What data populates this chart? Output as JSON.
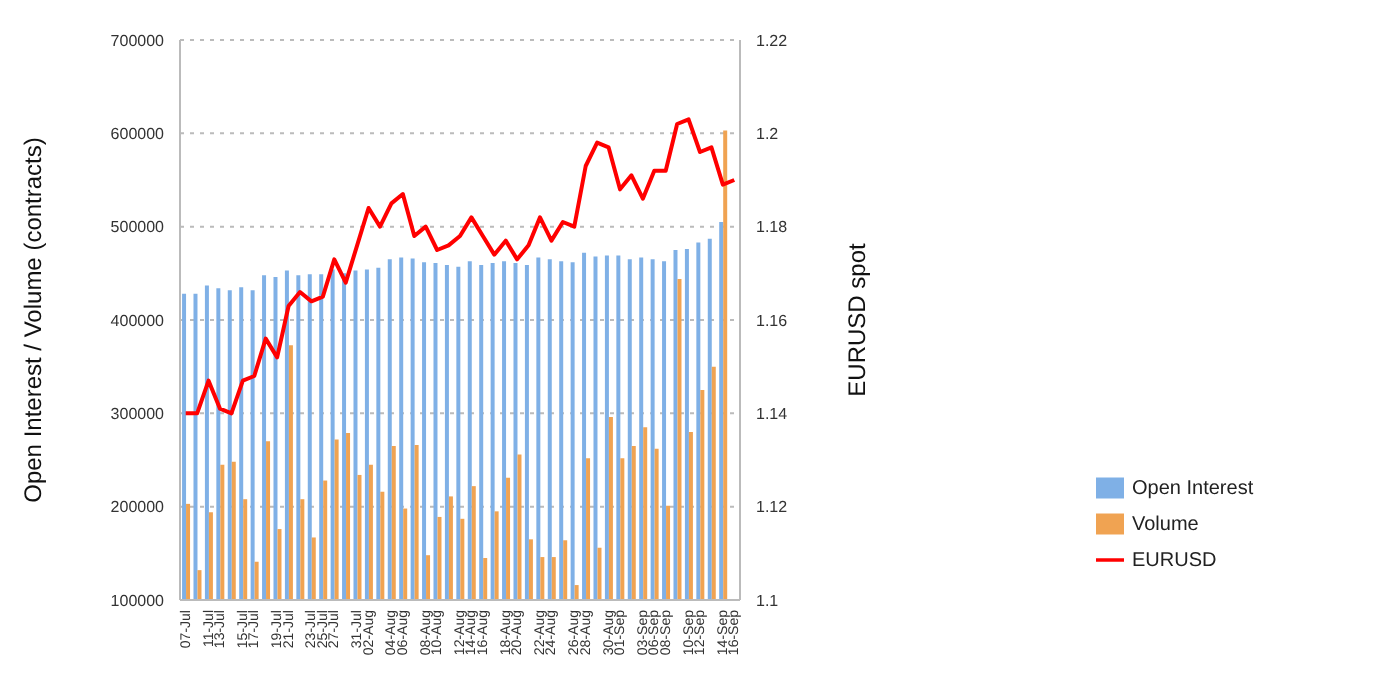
{
  "chart_data": {
    "type": "bar",
    "categories": [
      "07-Jul",
      null,
      "11-Jul",
      "13-Jul",
      null,
      "15-Jul",
      "17-Jul",
      null,
      "19-Jul",
      "21-Jul",
      null,
      "23-Jul",
      "25-Jul",
      "27-Jul",
      null,
      "31-Jul",
      "02-Aug",
      null,
      "04-Aug",
      "06-Aug",
      null,
      "08-Aug",
      "10-Aug",
      null,
      "12-Aug",
      "14-Aug",
      "16-Aug",
      null,
      "18-Aug",
      "20-Aug",
      null,
      "22-Aug",
      "24-Aug",
      null,
      "26-Aug",
      "28-Aug",
      null,
      "30-Aug",
      "01-Sep",
      null,
      "03-Sep",
      "06-Sep",
      "08-Sep",
      null,
      "10-Sep",
      "12-Sep",
      null,
      "14-Sep",
      "16-Sep"
    ],
    "series": [
      {
        "name": "Open Interest",
        "color": "#7fb0e6",
        "values": [
          428000,
          428000,
          437000,
          434000,
          432000,
          435000,
          432000,
          448000,
          446000,
          453000,
          448000,
          449000,
          449000,
          454000,
          450000,
          453000,
          454000,
          456000,
          465000,
          467000,
          466000,
          462000,
          461000,
          459000,
          457000,
          463000,
          459000,
          461000,
          463000,
          461000,
          459000,
          467000,
          465000,
          463000,
          462000,
          472000,
          468000,
          469000,
          469000,
          465000,
          467000,
          465000,
          463000,
          475000,
          476000,
          483000,
          487000,
          505000,
          null
        ]
      },
      {
        "name": "Volume",
        "color": "#f0a352",
        "values": [
          203000,
          132000,
          194000,
          245000,
          248000,
          208000,
          141000,
          270000,
          176000,
          373000,
          208000,
          167000,
          228000,
          272000,
          279000,
          234000,
          245000,
          216000,
          265000,
          198000,
          266000,
          148000,
          189000,
          211000,
          187000,
          222000,
          145000,
          195000,
          231000,
          256000,
          165000,
          146000,
          146000,
          164000,
          116000,
          252000,
          156000,
          296000,
          252000,
          265000,
          285000,
          262000,
          201000,
          444000,
          280000,
          325000,
          350000,
          603000,
          null
        ]
      },
      {
        "name": "EURUSD",
        "type": "line",
        "axis": "y2",
        "color": "#ff0000",
        "values": [
          1.14,
          1.14,
          1.147,
          1.141,
          1.14,
          1.147,
          1.148,
          1.156,
          1.152,
          1.163,
          1.166,
          1.164,
          1.165,
          1.173,
          1.168,
          1.176,
          1.184,
          1.18,
          1.185,
          1.187,
          1.178,
          1.18,
          1.175,
          1.176,
          1.178,
          1.182,
          1.178,
          1.174,
          1.177,
          1.173,
          1.176,
          1.182,
          1.177,
          1.181,
          1.18,
          1.193,
          1.198,
          1.197,
          1.188,
          1.191,
          1.186,
          1.192,
          1.192,
          1.202,
          1.203,
          1.196,
          1.197,
          1.189,
          1.19
        ]
      }
    ],
    "ylabel": "Open Interest / Volume (contracts)",
    "y2label": "EURUSD spot",
    "ylim": [
      100000,
      700000
    ],
    "yticks": [
      100000,
      200000,
      300000,
      400000,
      500000,
      600000,
      700000
    ],
    "y2lim": [
      1.1,
      1.22
    ],
    "y2ticks": [
      {
        "value": 1.1,
        "label": "1.1"
      },
      {
        "value": 1.12,
        "label": "1.12"
      },
      {
        "value": 1.14,
        "label": "1.14"
      },
      {
        "value": 1.16,
        "label": "1.16"
      },
      {
        "value": 1.18,
        "label": "1.18"
      },
      {
        "value": 1.2,
        "label": "1.2"
      },
      {
        "value": 1.22,
        "label": "1.22"
      }
    ],
    "grid": "y",
    "legend": "right",
    "marker": "none",
    "line_style": "solid"
  }
}
